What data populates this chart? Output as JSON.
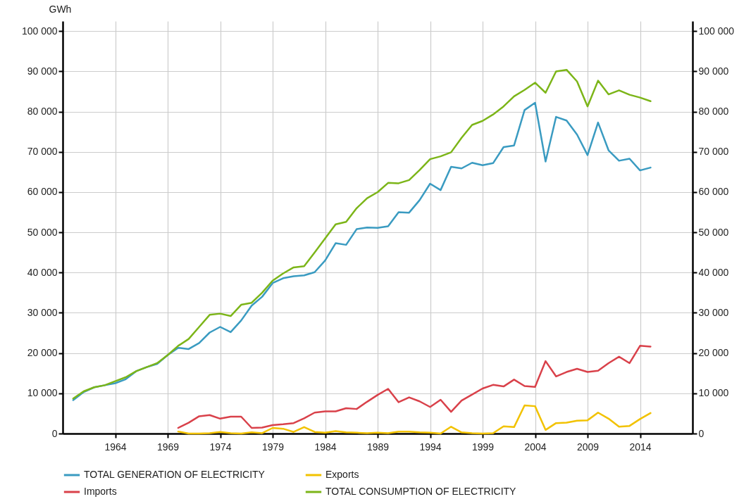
{
  "chart_data": {
    "type": "line",
    "ylabel": "GWh",
    "x": [
      1960,
      1961,
      1962,
      1963,
      1964,
      1965,
      1966,
      1967,
      1968,
      1969,
      1970,
      1971,
      1972,
      1973,
      1974,
      1975,
      1976,
      1977,
      1978,
      1979,
      1980,
      1981,
      1982,
      1983,
      1984,
      1985,
      1986,
      1987,
      1988,
      1989,
      1990,
      1991,
      1992,
      1993,
      1994,
      1995,
      1996,
      1997,
      1998,
      1999,
      2000,
      2001,
      2002,
      2003,
      2004,
      2005,
      2006,
      2007,
      2008,
      2009,
      2010,
      2011,
      2012,
      2013,
      2014,
      2015
    ],
    "xlim": [
      1959,
      2019
    ],
    "xticks": [
      1964,
      1969,
      1974,
      1979,
      1984,
      1989,
      1994,
      1999,
      2004,
      2009,
      2014
    ],
    "ylim": [
      0,
      102500
    ],
    "yticks": [
      0,
      {
        "value": 10000,
        "label": "10 000"
      },
      {
        "value": 20000,
        "label": "20 000"
      },
      {
        "value": 30000,
        "label": "30 000"
      },
      {
        "value": 40000,
        "label": "40 000"
      },
      {
        "value": 50000,
        "label": "50 000"
      },
      {
        "value": 60000,
        "label": "60 000"
      },
      {
        "value": 70000,
        "label": "70 000"
      },
      {
        "value": 80000,
        "label": "80 000"
      },
      {
        "value": 90000,
        "label": "90 000"
      },
      {
        "value": 100000,
        "label": "100 000"
      }
    ],
    "y2lim": [
      0,
      102500
    ],
    "y2ticks": [
      0,
      {
        "value": 10000,
        "label": "10 000"
      },
      {
        "value": 20000,
        "label": "20 000"
      },
      {
        "value": 30000,
        "label": "30 000"
      },
      {
        "value": 40000,
        "label": "40 000"
      },
      {
        "value": 50000,
        "label": "50 000"
      },
      {
        "value": 60000,
        "label": "60 000"
      },
      {
        "value": 70000,
        "label": "70 000"
      },
      {
        "value": 80000,
        "label": "80 000"
      },
      {
        "value": 90000,
        "label": "90 000"
      },
      {
        "value": 100000,
        "label": "100 000"
      }
    ],
    "grid": true,
    "legend": "bottom",
    "series": [
      {
        "name": "TOTAL GENERATION OF ELECTRICITY",
        "color": "#3a9bc1",
        "values": [
          8300,
          10300,
          11500,
          12000,
          12500,
          13500,
          15500,
          16500,
          17300,
          19500,
          21300,
          21000,
          22500,
          25100,
          26500,
          25200,
          28100,
          31800,
          34000,
          37400,
          38600,
          39100,
          39300,
          40100,
          43000,
          47300,
          46900,
          50800,
          51200,
          51100,
          51500,
          55000,
          54900,
          58000,
          62100,
          60500,
          66300,
          65900,
          67300,
          66700,
          67200,
          71200,
          71600,
          80400,
          82200,
          67600,
          78700,
          77800,
          74300,
          69200,
          77300,
          70400,
          67800,
          68300,
          65400,
          66100
        ]
      },
      {
        "name": "Exports",
        "color": "#f2c200",
        "x": [
          1970,
          1971,
          1972,
          1973,
          1974,
          1975,
          1976,
          1977,
          1978,
          1979,
          1980,
          1981,
          1982,
          1983,
          1984,
          1985,
          1986,
          1987,
          1988,
          1989,
          1990,
          1991,
          1992,
          1993,
          1994,
          1995,
          1996,
          1997,
          1998,
          1999,
          2000,
          2001,
          2002,
          2003,
          2004,
          2005,
          2006,
          2007,
          2008,
          2009,
          2010,
          2011,
          2012,
          2013,
          2014,
          2015
        ],
        "values": [
          500,
          0,
          0,
          100,
          400,
          100,
          0,
          300,
          100,
          1400,
          1200,
          400,
          1600,
          400,
          200,
          600,
          300,
          200,
          100,
          200,
          100,
          500,
          500,
          300,
          200,
          0,
          1700,
          300,
          100,
          0,
          100,
          1800,
          1600,
          7000,
          6800,
          900,
          2600,
          2700,
          3200,
          3300,
          5200,
          3700,
          1700,
          1900,
          3600,
          5100
        ]
      },
      {
        "name": "Imports",
        "color": "#d9414a",
        "x": [
          1970,
          1971,
          1972,
          1973,
          1974,
          1975,
          1976,
          1977,
          1978,
          1979,
          1980,
          1981,
          1982,
          1983,
          1984,
          1985,
          1986,
          1987,
          1988,
          1989,
          1990,
          1991,
          1992,
          1993,
          1994,
          1995,
          1996,
          1997,
          1998,
          1999,
          2000,
          2001,
          2002,
          2003,
          2004,
          2005,
          2006,
          2007,
          2008,
          2009,
          2010,
          2011,
          2012,
          2013,
          2014,
          2015
        ],
        "values": [
          1400,
          2700,
          4300,
          4600,
          3700,
          4200,
          4200,
          1400,
          1500,
          2100,
          2300,
          2600,
          3800,
          5200,
          5500,
          5500,
          6300,
          6100,
          7900,
          9600,
          11100,
          7800,
          9000,
          8000,
          6600,
          8400,
          5400,
          8200,
          9700,
          11200,
          12100,
          11700,
          13400,
          11800,
          11600,
          18000,
          14200,
          15300,
          16100,
          15300,
          15600,
          17500,
          19100,
          17500,
          21800,
          21600
        ]
      },
      {
        "name": "TOTAL CONSUMPTION OF ELECTRICITY",
        "color": "#7cb518",
        "values": [
          8700,
          10500,
          11500,
          12000,
          13000,
          14000,
          15500,
          16500,
          17500,
          19500,
          21800,
          23500,
          26500,
          29500,
          29800,
          29200,
          32000,
          32500,
          35000,
          38000,
          39800,
          41300,
          41600,
          45000,
          48500,
          52000,
          52600,
          56000,
          58500,
          60000,
          62300,
          62200,
          63000,
          65500,
          68200,
          68900,
          69900,
          73500,
          76700,
          77700,
          79300,
          81300,
          83800,
          85400,
          87200,
          84700,
          90000,
          90400,
          87500,
          81300,
          87700,
          84300,
          85300,
          84200,
          83500,
          82600
        ]
      }
    ]
  }
}
